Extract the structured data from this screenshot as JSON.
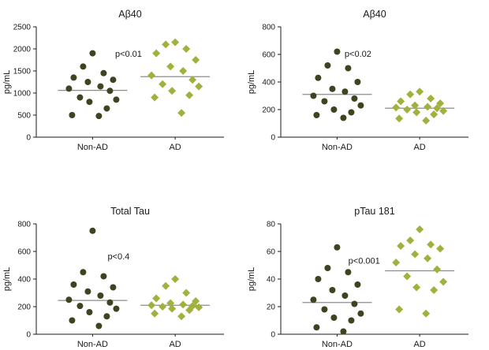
{
  "colors": {
    "non_ad": "#3f4322",
    "ad": "#a2b13d",
    "mean_line": "#8c8c8c",
    "axis": "#1a1a1a",
    "text": "#1a1a1a"
  },
  "chart_data": [
    {
      "type": "scatter",
      "title": "Aβ40",
      "ylabel": "pg/mL",
      "ylim": [
        0,
        2500
      ],
      "yticks": [
        0,
        500,
        1000,
        1500,
        2000,
        2500
      ],
      "categories": [
        "Non-AD",
        "AD"
      ],
      "p_label": "p<0.01",
      "p_pos": [
        0.42,
        0.27
      ],
      "grid": false,
      "series": [
        {
          "name": "Non-AD",
          "marker": "circle",
          "color_key": "non_ad",
          "mean": 1060,
          "values": [
            1900,
            1600,
            1450,
            1350,
            1300,
            1250,
            1150,
            1100,
            1050,
            900,
            850,
            800,
            650,
            500,
            480
          ]
        },
        {
          "name": "AD",
          "marker": "diamond",
          "color_key": "ad",
          "mean": 1370,
          "values": [
            2150,
            2100,
            2000,
            1900,
            1750,
            1600,
            1500,
            1400,
            1300,
            1200,
            1150,
            1050,
            950,
            900,
            550
          ]
        }
      ]
    },
    {
      "type": "scatter",
      "title": "Aβ40",
      "ylabel": "pg/mL",
      "ylim": [
        0,
        800
      ],
      "yticks": [
        0,
        200,
        400,
        600,
        800
      ],
      "categories": [
        "Non-AD",
        "AD"
      ],
      "p_label": "p<0.02",
      "p_pos": [
        0.34,
        0.27
      ],
      "grid": false,
      "series": [
        {
          "name": "Non-AD",
          "marker": "circle",
          "color_key": "non_ad",
          "mean": 310,
          "values": [
            620,
            520,
            500,
            430,
            400,
            350,
            330,
            300,
            280,
            260,
            230,
            200,
            180,
            160,
            140
          ]
        },
        {
          "name": "AD",
          "marker": "diamond",
          "color_key": "ad",
          "mean": 210,
          "values": [
            330,
            310,
            280,
            260,
            245,
            230,
            220,
            215,
            210,
            200,
            190,
            180,
            165,
            135,
            120
          ]
        }
      ]
    },
    {
      "type": "scatter",
      "title": "Total Tau",
      "ylabel": "pg/mL",
      "ylim": [
        0,
        800
      ],
      "yticks": [
        0,
        200,
        400,
        600,
        800
      ],
      "categories": [
        "Non-AD",
        "AD"
      ],
      "p_label": "p<0.4",
      "p_pos": [
        0.38,
        0.32
      ],
      "grid": false,
      "series": [
        {
          "name": "Non-AD",
          "marker": "circle",
          "color_key": "non_ad",
          "mean": 245,
          "values": [
            750,
            450,
            420,
            360,
            340,
            310,
            280,
            250,
            230,
            205,
            185,
            160,
            130,
            100,
            60
          ]
        },
        {
          "name": "AD",
          "marker": "diamond",
          "color_key": "ad",
          "mean": 210,
          "values": [
            400,
            350,
            300,
            260,
            240,
            225,
            215,
            210,
            205,
            200,
            195,
            185,
            175,
            150,
            130
          ]
        }
      ]
    },
    {
      "type": "scatter",
      "title": "pTau 181",
      "ylabel": "pg/mL",
      "ylim": [
        0,
        80
      ],
      "yticks": [
        0,
        20,
        40,
        60,
        80
      ],
      "categories": [
        "Non-AD",
        "AD"
      ],
      "p_label": "p<0.001",
      "p_pos": [
        0.36,
        0.36
      ],
      "grid": false,
      "series": [
        {
          "name": "Non-AD",
          "marker": "circle",
          "color_key": "non_ad",
          "mean": 23,
          "values": [
            63,
            48,
            45,
            40,
            36,
            32,
            28,
            25,
            22,
            18,
            15,
            12,
            10,
            5,
            2
          ]
        },
        {
          "name": "AD",
          "marker": "diamond",
          "color_key": "ad",
          "mean": 46,
          "values": [
            76,
            68,
            65,
            64,
            62,
            58,
            55,
            52,
            47,
            42,
            38,
            34,
            32,
            18,
            15
          ]
        }
      ]
    }
  ]
}
